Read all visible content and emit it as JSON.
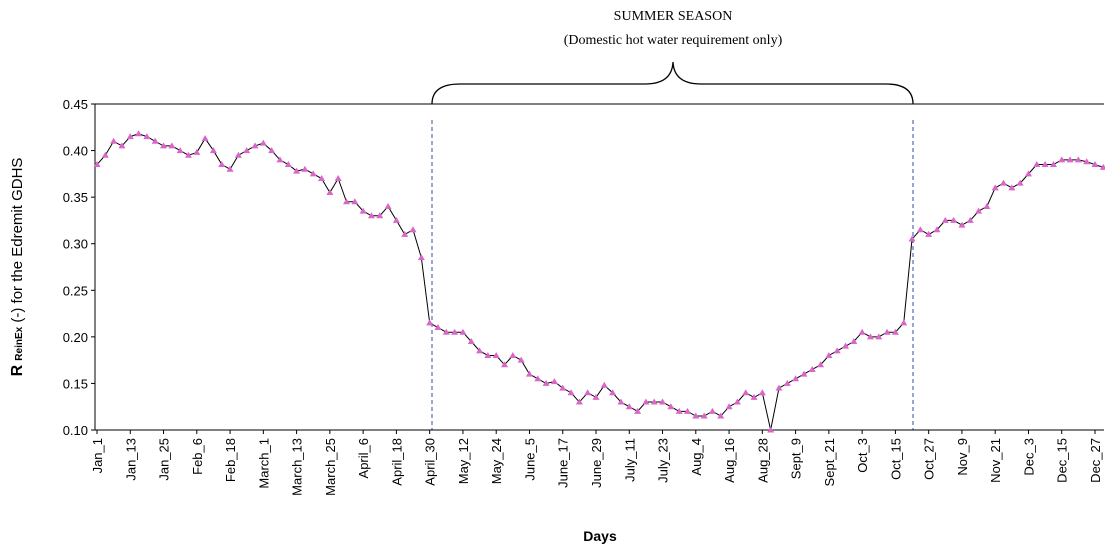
{
  "chart_data": {
    "type": "line",
    "annotation_title": "SUMMER SEASON",
    "annotation_subtitle": "(Domestic hot water requirement only)",
    "y_label": {
      "main": "R",
      "sub": "ReinEx",
      "rest": "(-) for the Edremit GDHS"
    },
    "x_label": "Days",
    "ylim": [
      0.1,
      0.45
    ],
    "yticks": [
      {
        "value": 0.1,
        "label": "0.10"
      },
      {
        "value": 0.15,
        "label": "0.15"
      },
      {
        "value": 0.2,
        "label": "0.20"
      },
      {
        "value": 0.25,
        "label": "0.25"
      },
      {
        "value": 0.3,
        "label": "0.30"
      },
      {
        "value": 0.35,
        "label": "0.35"
      },
      {
        "value": 0.4,
        "label": "0.40"
      },
      {
        "value": 0.45,
        "label": "0.45"
      }
    ],
    "categories": [
      "Jan_1",
      null,
      null,
      null,
      "Jan_13",
      null,
      null,
      null,
      "Jan_25",
      null,
      null,
      null,
      "Feb_6",
      null,
      null,
      null,
      "Feb_18",
      null,
      null,
      null,
      "March_1",
      null,
      null,
      null,
      "March_13",
      null,
      null,
      null,
      "March_25",
      null,
      null,
      null,
      "April_6",
      null,
      null,
      null,
      "April_18",
      null,
      null,
      null,
      "April_30",
      null,
      null,
      null,
      "May_12",
      null,
      null,
      null,
      "May_24",
      null,
      null,
      null,
      "June_5",
      null,
      null,
      null,
      "June_17",
      null,
      null,
      null,
      "June_29",
      null,
      null,
      null,
      "July_11",
      null,
      null,
      null,
      "July_23",
      null,
      null,
      null,
      "Aug_4",
      null,
      null,
      null,
      "Aug_16",
      null,
      null,
      null,
      "Aug_28",
      null,
      null,
      null,
      "Sept_9",
      null,
      null,
      null,
      "Sept_21",
      null,
      null,
      null,
      "Oct_3",
      null,
      null,
      null,
      "Oct_15",
      null,
      null,
      null,
      "Oct_27",
      null,
      null,
      null,
      "Nov_9",
      null,
      null,
      null,
      "Nov_21",
      null,
      null,
      null,
      "Dec_3",
      null,
      null,
      null,
      "Dec_15",
      null,
      null,
      null,
      "Dec_27",
      null
    ],
    "series": [
      {
        "color": "#d966c8",
        "line_color": "#000000",
        "values": [
          0.385,
          0.395,
          0.41,
          0.405,
          0.415,
          0.418,
          0.415,
          0.41,
          0.405,
          0.405,
          0.4,
          0.395,
          0.398,
          0.413,
          0.4,
          0.385,
          0.38,
          0.395,
          0.4,
          0.405,
          0.408,
          0.4,
          0.39,
          0.385,
          0.378,
          0.38,
          0.375,
          0.37,
          0.355,
          0.37,
          0.345,
          0.345,
          0.335,
          0.33,
          0.33,
          0.34,
          0.325,
          0.31,
          0.315,
          0.285,
          0.215,
          0.21,
          0.205,
          0.205,
          0.205,
          0.195,
          0.185,
          0.18,
          0.18,
          0.17,
          0.18,
          0.175,
          0.16,
          0.155,
          0.15,
          0.152,
          0.145,
          0.14,
          0.13,
          0.14,
          0.135,
          0.148,
          0.14,
          0.13,
          0.125,
          0.12,
          0.13,
          0.13,
          0.13,
          0.125,
          0.12,
          0.12,
          0.115,
          0.115,
          0.12,
          0.115,
          0.125,
          0.13,
          0.14,
          0.135,
          0.14,
          0.1,
          0.145,
          0.15,
          0.155,
          0.16,
          0.165,
          0.17,
          0.18,
          0.185,
          0.19,
          0.195,
          0.205,
          0.2,
          0.2,
          0.205,
          0.205,
          0.215,
          0.305,
          0.315,
          0.31,
          0.315,
          0.325,
          0.325,
          0.32,
          0.325,
          0.335,
          0.34,
          0.36,
          0.365,
          0.36,
          0.365,
          0.375,
          0.385,
          0.385,
          0.385,
          0.39,
          0.39,
          0.39,
          0.388,
          0.385,
          0.382
        ]
      }
    ]
  }
}
